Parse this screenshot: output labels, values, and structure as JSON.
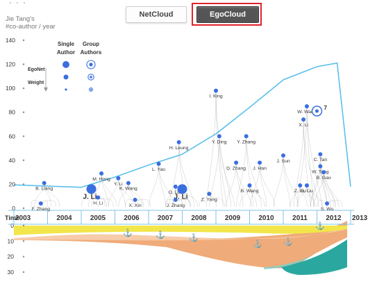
{
  "tabs": {
    "netcloud": "NetCloud",
    "egocloud": "EgoCloud",
    "active": "EgoCloud",
    "highlight_color": "#e0222a"
  },
  "header": {
    "line1": "Jie Tang's",
    "line2": "#co-author / year"
  },
  "legend": {
    "single_label_1": "Single",
    "single_label_2": "Author",
    "group_label_1": "Group",
    "group_label_2": "Authors",
    "egonet_label": "EgoNet",
    "weight_label": "Weight"
  },
  "time_axis": {
    "label": "Time",
    "years": [
      "2003",
      "2004",
      "2005",
      "2006",
      "2007",
      "2008",
      "2009",
      "2010",
      "2011",
      "2012",
      "2013"
    ]
  },
  "y_axis_top": {
    "ticks": [
      0,
      20,
      40,
      60,
      80,
      100,
      120,
      140
    ]
  },
  "y_axis_bottom": {
    "ticks": [
      0,
      10,
      20,
      30
    ]
  },
  "colors": {
    "envelope": "#5bc0eb",
    "node": "#3a6fe0",
    "axis_blue": "#7ec4ea",
    "stream_yellow": "#f2e64a",
    "stream_peach": "#f6c7a1",
    "stream_orange": "#eea772",
    "stream_teal": "#2aa89f"
  },
  "chart_data": {
    "type": "area",
    "envelope_series": {
      "name": "",
      "x": [
        2003,
        2005,
        2006,
        2007,
        2008,
        2009,
        2010,
        2011,
        2012,
        2012.6,
        2013
      ],
      "values": [
        19.5,
        17.5,
        26,
        36,
        45,
        62,
        84,
        107,
        118,
        121,
        18
      ]
    },
    "authors": [
      {
        "name": "B. Liang",
        "year": 2003.9,
        "value": 21,
        "size": "small"
      },
      {
        "name": "F. Zhang",
        "year": 2003.8,
        "value": 4,
        "size": "small"
      },
      {
        "name": "J. Li",
        "year": 2005.3,
        "value": 16,
        "size": "large"
      },
      {
        "name": "H. Li",
        "year": 2005.5,
        "value": 9,
        "size": "small"
      },
      {
        "name": "M. Hong",
        "year": 2005.6,
        "value": 29,
        "size": "small"
      },
      {
        "name": "Y. Li",
        "year": 2006.1,
        "value": 25,
        "size": "small"
      },
      {
        "name": "K. Wang",
        "year": 2006.4,
        "value": 21,
        "size": "small"
      },
      {
        "name": "X. Xin",
        "year": 2006.6,
        "value": 7,
        "size": "small"
      },
      {
        "name": "L. Yao",
        "year": 2007.3,
        "value": 37,
        "size": "small"
      },
      {
        "name": "O. Luo",
        "year": 2007.8,
        "value": 18,
        "size": "small"
      },
      {
        "name": "J. Li",
        "year": 2008.0,
        "value": 16,
        "size": "large"
      },
      {
        "name": "J. Zhang",
        "year": 2007.8,
        "value": 7,
        "size": "small"
      },
      {
        "name": "H. Leung",
        "year": 2007.9,
        "value": 55,
        "size": "small"
      },
      {
        "name": "Z. Yang",
        "year": 2008.8,
        "value": 12,
        "size": "small"
      },
      {
        "name": "I. King",
        "year": 2009.0,
        "value": 98,
        "size": "small"
      },
      {
        "name": "Y. Ding",
        "year": 2009.1,
        "value": 60,
        "size": "small"
      },
      {
        "name": "D. Zhang",
        "year": 2009.6,
        "value": 38,
        "size": "small"
      },
      {
        "name": "Y. Zhang",
        "year": 2009.9,
        "value": 60,
        "size": "small"
      },
      {
        "name": "B. Wang",
        "year": 2010.0,
        "value": 19,
        "size": "small"
      },
      {
        "name": "J. Han",
        "year": 2010.3,
        "value": 38,
        "size": "small"
      },
      {
        "name": "J. Sun",
        "year": 2011.0,
        "value": 44,
        "size": "small"
      },
      {
        "name": "W. Wang",
        "year": 2011.7,
        "value": 85,
        "size": "small"
      },
      {
        "name": "X. Li",
        "year": 2011.6,
        "value": 74,
        "size": "small"
      },
      {
        "name": "Z. Liu",
        "year": 2011.5,
        "value": 19,
        "size": "small"
      },
      {
        "name": "E. Liu",
        "year": 2011.7,
        "value": 19,
        "size": "small"
      },
      {
        "name": "C. Tan",
        "year": 2012.1,
        "value": 45,
        "size": "small"
      },
      {
        "name": "W. Tang",
        "year": 2012.1,
        "value": 35,
        "size": "small"
      },
      {
        "name": "B. Gao",
        "year": 2012.2,
        "value": 30,
        "size": "small"
      },
      {
        "name": "S. Wu",
        "year": 2012.3,
        "value": 4,
        "size": "small"
      }
    ],
    "group_node_label": "7",
    "xlabel": "Time",
    "ylabel": "#co-author / year",
    "xlim": [
      2003,
      2013
    ],
    "ylim": [
      0,
      140
    ]
  }
}
